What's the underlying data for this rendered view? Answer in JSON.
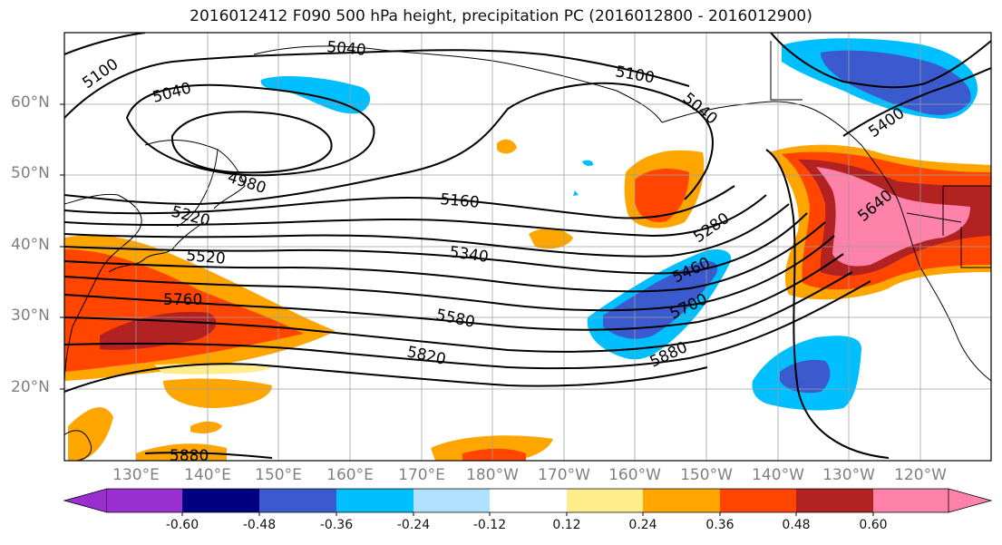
{
  "title": "2016012412 F090 500 hPa height, precipitation PC (2016012800 - 2016012900)",
  "lat_labels": [
    "60°N",
    "50°N",
    "40°N",
    "30°N",
    "20°N"
  ],
  "lon_labels": [
    "130°E",
    "140°E",
    "150°E",
    "160°E",
    "170°E",
    "180°W",
    "170°W",
    "160°W",
    "150°W",
    "140°W",
    "130°W",
    "120°W"
  ],
  "contour_labels": [
    "5040",
    "5100",
    "5040",
    "4980",
    "5220",
    "5520",
    "5760",
    "5880",
    "5160",
    "5340",
    "5580",
    "5820",
    "5100",
    "5040",
    "5280",
    "5460",
    "5700",
    "5880",
    "5400",
    "5640"
  ],
  "colorbar": {
    "tick_labels": [
      "-0.60",
      "-0.48",
      "-0.36",
      "-0.24",
      "-0.12",
      "0.12",
      "0.24",
      "0.36",
      "0.48",
      "0.60"
    ],
    "colors": [
      "#9a2fd0",
      "#000080",
      "#3a5acd",
      "#00bfff",
      "#b0e2ff",
      "#ffffff",
      "#ffec8b",
      "#ffa500",
      "#ff4500",
      "#b22222",
      "#ff82ab"
    ]
  },
  "colors": {
    "orange_light": "#ffa500",
    "orange_red": "#ff4500",
    "dark_red": "#b22222",
    "pink": "#ff82ab",
    "yellow": "#ffec8b",
    "cyan": "#00bfff",
    "royal_blue": "#3a5acd",
    "grid": "#9e9e9e",
    "axis_label": "#808080"
  }
}
